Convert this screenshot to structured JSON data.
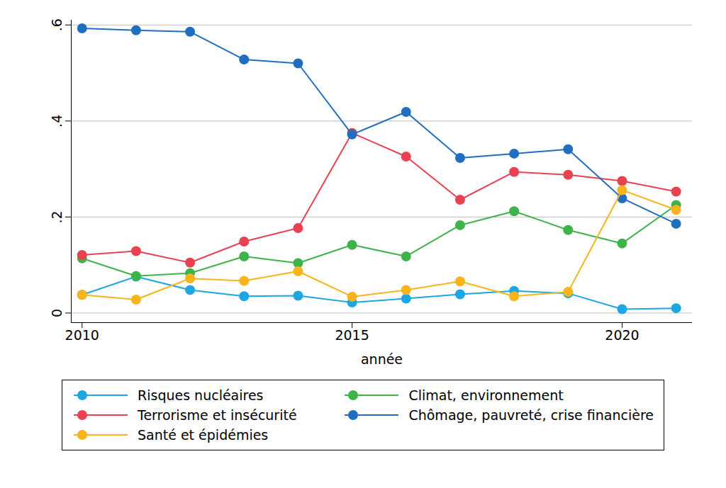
{
  "chart_data": {
    "type": "line",
    "x_label": "année",
    "x": [
      2010,
      2011,
      2012,
      2013,
      2014,
      2015,
      2016,
      2017,
      2018,
      2019,
      2020,
      2021
    ],
    "xlim": [
      2009.8,
      2021.3
    ],
    "xticks": [
      2010,
      2015,
      2020
    ],
    "ylim": [
      -0.02,
      0.61
    ],
    "yticks": [
      0,
      {
        "value": 0.2,
        "label": ".2"
      },
      {
        "value": 0.4,
        "label": ".4"
      },
      {
        "value": 0.6,
        "label": ".6"
      }
    ],
    "grid": true,
    "legend": "bottom",
    "series": [
      {
        "name": "Risques nucléaires",
        "color": "#1ca7e3",
        "marker": "circle",
        "values": [
          0.038,
          0.076,
          0.048,
          0.035,
          0.036,
          0.022,
          0.03,
          0.039,
          0.046,
          0.041,
          0.008,
          0.01
        ]
      },
      {
        "name": "Climat, environnement",
        "color": "#3db34a",
        "marker": "circle",
        "values": [
          0.114,
          0.077,
          0.083,
          0.118,
          0.104,
          0.142,
          0.118,
          0.183,
          0.212,
          0.173,
          0.145,
          0.225
        ]
      },
      {
        "name": "Terrorisme et insécurité",
        "color": "#e8414f",
        "marker": "circle",
        "values": [
          0.121,
          0.129,
          0.105,
          0.149,
          0.177,
          0.375,
          0.326,
          0.236,
          0.294,
          0.288,
          0.275,
          0.253
        ]
      },
      {
        "name": "Chômage, pauvreté, crise financière",
        "color": "#1f6ebf",
        "marker": "circle",
        "values": [
          0.593,
          0.589,
          0.586,
          0.528,
          0.52,
          0.372,
          0.419,
          0.323,
          0.332,
          0.341,
          0.239,
          0.186
        ]
      },
      {
        "name": "Santé et épidémies",
        "color": "#f8b41a",
        "marker": "circle",
        "values": [
          0.038,
          0.028,
          0.072,
          0.067,
          0.087,
          0.034,
          0.048,
          0.066,
          0.035,
          0.044,
          0.256,
          0.215
        ]
      }
    ]
  }
}
